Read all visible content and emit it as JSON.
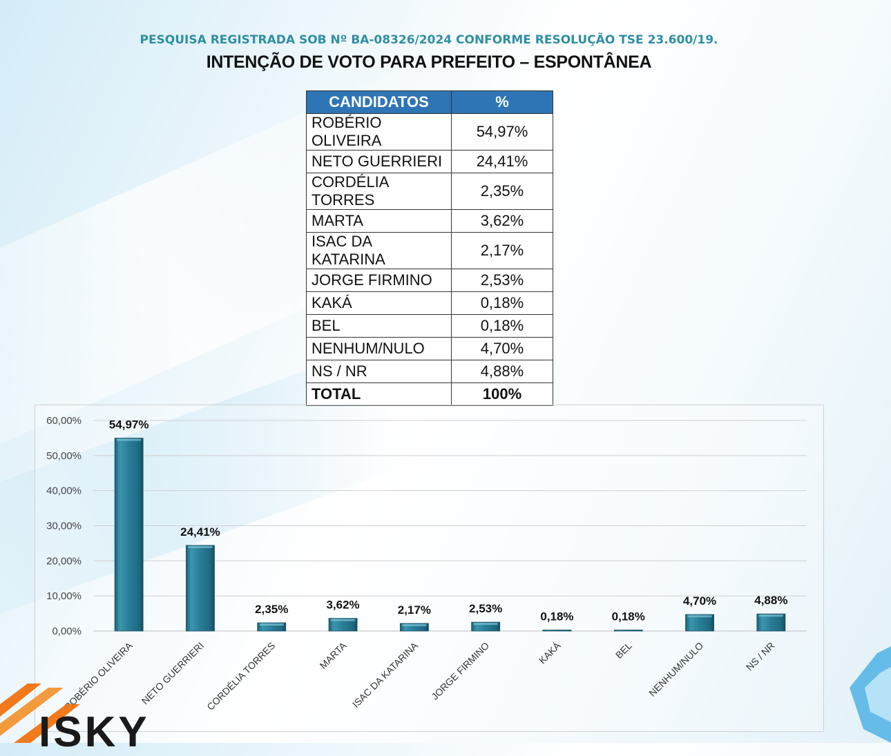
{
  "header": {
    "subtitle": "PESQUISA REGISTRADA SOB Nº BA-08326/2024 CONFORME RESOLUÇÃO TSE 23.600/19.",
    "title": "INTENÇÃO DE VOTO PARA PREFEITO – ESPONTÂNEA"
  },
  "table": {
    "col_candidates": "CANDIDATOS",
    "col_percent": "%",
    "rows": [
      {
        "name": "ROBÉRIO OLIVEIRA",
        "pct": "54,97%"
      },
      {
        "name": "NETO GUERRIERI",
        "pct": "24,41%"
      },
      {
        "name": "CORDÉLIA TORRES",
        "pct": "2,35%"
      },
      {
        "name": "MARTA",
        "pct": "3,62%"
      },
      {
        "name": "ISAC DA KATARINA",
        "pct": "2,17%"
      },
      {
        "name": "JORGE FIRMINO",
        "pct": "2,53%"
      },
      {
        "name": "KAKÁ",
        "pct": "0,18%"
      },
      {
        "name": "BEL",
        "pct": "0,18%"
      },
      {
        "name": "NENHUM/NULO",
        "pct": "4,70%"
      },
      {
        "name": "NS / NR",
        "pct": "4,88%"
      }
    ],
    "total_label": "TOTAL",
    "total_value": "100%"
  },
  "chart_data": {
    "type": "bar",
    "categories": [
      "ROBÉRIO OLIVEIRA",
      "NETO GUERRIERI",
      "CORDÉLIA TORRES",
      "MARTA",
      "ISAC DA KATARINA",
      "JORGE FIRMINO",
      "KAKÁ",
      "BEL",
      "NENHUM/NULO",
      "NS / NR"
    ],
    "values": [
      54.97,
      24.41,
      2.35,
      3.62,
      2.17,
      2.53,
      0.18,
      0.18,
      4.7,
      4.88
    ],
    "data_labels": [
      "54,97%",
      "24,41%",
      "2,35%",
      "3,62%",
      "2,17%",
      "2,53%",
      "0,18%",
      "0,18%",
      "4,70%",
      "4,88%"
    ],
    "y_ticks": [
      0,
      10,
      20,
      30,
      40,
      50,
      60
    ],
    "y_tick_labels": [
      "0,00%",
      "10,00%",
      "20,00%",
      "30,00%",
      "40,00%",
      "50,00%",
      "60,00%"
    ],
    "ylim": [
      0,
      60
    ],
    "grid": true,
    "title": "",
    "xlabel": "",
    "ylabel": "",
    "bar_color": "#2a7c96"
  },
  "logo": {
    "text": "ISKY"
  }
}
